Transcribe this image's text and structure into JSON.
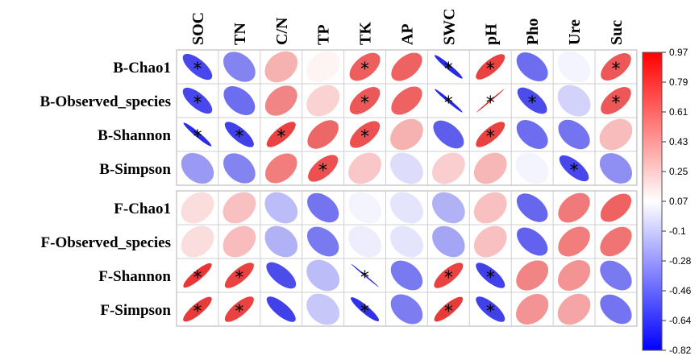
{
  "chart_data": {
    "type": "heatmap",
    "columns": [
      "SOC",
      "TN",
      "C/N",
      "TP",
      "TK",
      "AP",
      "SWC",
      "pH",
      "Pho",
      "Ure",
      "Suc"
    ],
    "rows": [
      "B-Chao1",
      "B-Observed_species",
      "B-Shannon",
      "B-Simpson",
      "F-Chao1",
      "F-Observed_species",
      "F-Shannon",
      "F-Simpson"
    ],
    "groups": [
      [
        0,
        3
      ],
      [
        4,
        7
      ]
    ],
    "values": [
      [
        -0.82,
        -0.55,
        0.35,
        0.05,
        0.72,
        0.7,
        -0.95,
        0.85,
        -0.65,
        -0.05,
        0.75
      ],
      [
        -0.82,
        -0.65,
        0.55,
        0.2,
        0.75,
        0.7,
        -0.97,
        0.99,
        -0.8,
        -0.2,
        0.75
      ],
      [
        -0.95,
        -0.85,
        0.85,
        0.68,
        0.78,
        0.35,
        -0.72,
        0.85,
        -0.65,
        -0.62,
        0.3
      ],
      [
        -0.45,
        -0.55,
        0.58,
        0.78,
        0.25,
        -0.15,
        0.22,
        0.32,
        -0.05,
        -0.82,
        -0.5
      ],
      [
        0.15,
        0.28,
        -0.3,
        -0.62,
        -0.05,
        -0.12,
        -0.35,
        0.28,
        -0.68,
        0.6,
        0.7
      ],
      [
        0.15,
        0.3,
        -0.35,
        -0.6,
        -0.08,
        -0.12,
        -0.4,
        0.28,
        -0.7,
        0.58,
        0.62
      ],
      [
        0.9,
        0.85,
        -0.8,
        -0.3,
        -0.99,
        -0.6,
        0.85,
        -0.85,
        0.55,
        0.48,
        -0.6
      ],
      [
        0.88,
        0.85,
        -0.85,
        -0.25,
        -0.92,
        -0.58,
        0.88,
        -0.85,
        0.48,
        0.4,
        -0.62
      ]
    ],
    "significant": [
      [
        0,
        0
      ],
      [
        0,
        4
      ],
      [
        0,
        6
      ],
      [
        0,
        7
      ],
      [
        0,
        10
      ],
      [
        1,
        0
      ],
      [
        1,
        4
      ],
      [
        1,
        6
      ],
      [
        1,
        7
      ],
      [
        1,
        8
      ],
      [
        1,
        10
      ],
      [
        2,
        0
      ],
      [
        2,
        1
      ],
      [
        2,
        2
      ],
      [
        2,
        4
      ],
      [
        2,
        7
      ],
      [
        3,
        3
      ],
      [
        3,
        9
      ],
      [
        6,
        0
      ],
      [
        6,
        1
      ],
      [
        6,
        4
      ],
      [
        6,
        6
      ],
      [
        6,
        7
      ],
      [
        7,
        0
      ],
      [
        7,
        1
      ],
      [
        7,
        4
      ],
      [
        7,
        6
      ],
      [
        7,
        7
      ]
    ],
    "significance_marker": "*",
    "colorbar": {
      "min": -0.82,
      "max": 0.97,
      "ticks": [
        "0.97",
        "0.79",
        "0.61",
        "0.43",
        "0.25",
        "0.07",
        "-0.1",
        "-0.28",
        "-0.46",
        "-0.64",
        "-0.82"
      ]
    },
    "colors": {
      "negative": "#1f1fe6",
      "neutral": "#ffffff",
      "positive": "#e61f1f"
    }
  }
}
